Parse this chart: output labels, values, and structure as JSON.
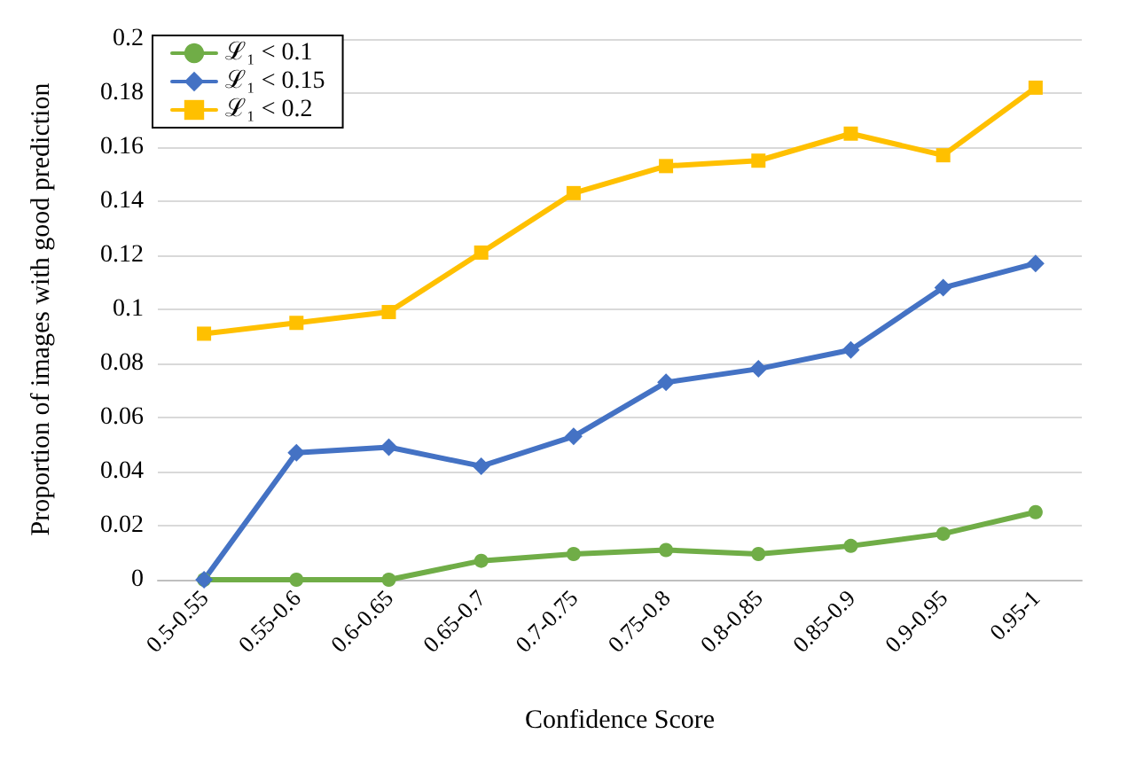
{
  "chart_data": {
    "type": "line",
    "xlabel": "Confidence Score",
    "ylabel": "Proportion of images with good prediction",
    "categories": [
      "0.5-0.55",
      "0.55-0.6",
      "0.6-0.65",
      "0.65-0.7",
      "0.7-0.75",
      "0.75-0.8",
      "0.8-0.85",
      "0.85-0.9",
      "0.9-0.95",
      "0.95-1"
    ],
    "series": [
      {
        "name": "ℒ₁ < 0.1",
        "color": "#70ad47",
        "marker": "circle",
        "values": [
          0,
          0,
          0,
          0.007,
          0.0095,
          0.011,
          0.0095,
          0.0125,
          0.017,
          0.025
        ]
      },
      {
        "name": "ℒ₁ < 0.15",
        "color": "#4472c4",
        "marker": "diamond",
        "values": [
          0,
          0.047,
          0.049,
          0.042,
          0.053,
          0.073,
          0.078,
          0.085,
          0.108,
          0.117
        ]
      },
      {
        "name": "ℒ₁ < 0.2",
        "color": "#ffc000",
        "marker": "square",
        "values": [
          0.091,
          0.095,
          0.099,
          0.121,
          0.143,
          0.153,
          0.155,
          0.165,
          0.157,
          0.182
        ]
      }
    ],
    "ylim": [
      0,
      0.2
    ],
    "yticks": [
      0,
      0.02,
      0.04,
      0.06,
      0.08,
      0.1,
      0.12,
      0.14,
      0.16,
      0.18,
      0.2
    ],
    "grid": "y",
    "legend": "top left",
    "line_style": "solid"
  }
}
